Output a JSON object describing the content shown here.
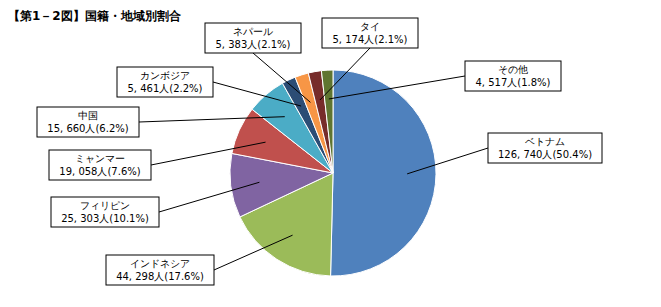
{
  "chart_data": {
    "type": "pie",
    "title": "【第1－2図】国籍・地域別割合",
    "categories": [
      "ベトナム",
      "インドネシア",
      "フィリピン",
      "ミャンマー",
      "中国",
      "カンボジア",
      "ネパール",
      "タイ",
      "その他"
    ],
    "values": [
      126740,
      44298,
      25303,
      19058,
      15660,
      5461,
      5383,
      5174,
      4517
    ],
    "value_labels": [
      "126, 740人(50.4%)",
      "44, 298人(17.6%)",
      "25, 303人(10.1%)",
      "19, 058人(7.6%)",
      "15, 660人(6.2%)",
      "5, 461人(2.2%)",
      "5, 383人(2.1%)",
      "5, 174人(2.1%)",
      "4, 517人(1.8%)"
    ],
    "colors": [
      "#4f81bd",
      "#9bbb59",
      "#8064a2",
      "#c0504d",
      "#4bacc6",
      "#2c4d75",
      "#f79646",
      "#772c2a",
      "#5f7530"
    ],
    "data_labels": true
  }
}
